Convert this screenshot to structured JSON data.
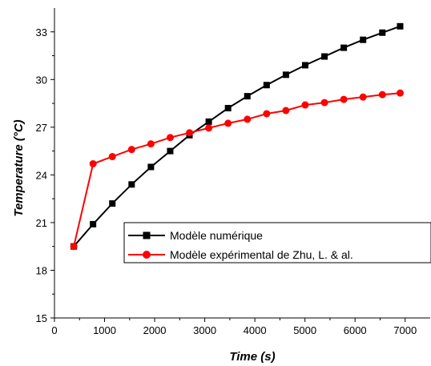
{
  "chart_data": {
    "type": "line",
    "title": "",
    "xlabel": "Time (s)",
    "ylabel": "Temperature (°C)",
    "xlim": [
      0,
      7500
    ],
    "ylim": [
      15,
      34.5
    ],
    "xticks": [
      0,
      1000,
      2000,
      3000,
      4000,
      5000,
      6000,
      7000
    ],
    "yticks": [
      15,
      18,
      21,
      24,
      27,
      30,
      33
    ],
    "grid": false,
    "legend_position": "lower-right",
    "series": [
      {
        "name": "Modèle numérique",
        "color": "#000000",
        "marker": "square",
        "x": [
          385,
          770,
          1155,
          1540,
          1925,
          2310,
          2695,
          3080,
          3465,
          3850,
          4235,
          4620,
          5005,
          5390,
          5775,
          6160,
          6545,
          6900
        ],
        "y": [
          19.5,
          20.9,
          22.2,
          23.4,
          24.5,
          25.5,
          26.5,
          27.35,
          28.2,
          28.95,
          29.65,
          30.3,
          30.9,
          31.45,
          32.0,
          32.5,
          32.95,
          33.35
        ]
      },
      {
        "name": "Modèle expérimental de Zhu, L. & al.",
        "color": "#ff0000",
        "marker": "circle",
        "x": [
          385,
          770,
          1155,
          1540,
          1925,
          2310,
          2695,
          3080,
          3465,
          3850,
          4235,
          4620,
          5005,
          5390,
          5775,
          6160,
          6545,
          6900
        ],
        "y": [
          19.5,
          24.7,
          25.15,
          25.6,
          25.95,
          26.35,
          26.65,
          26.95,
          27.25,
          27.5,
          27.85,
          28.05,
          28.4,
          28.55,
          28.75,
          28.9,
          29.05,
          29.15
        ]
      }
    ]
  }
}
